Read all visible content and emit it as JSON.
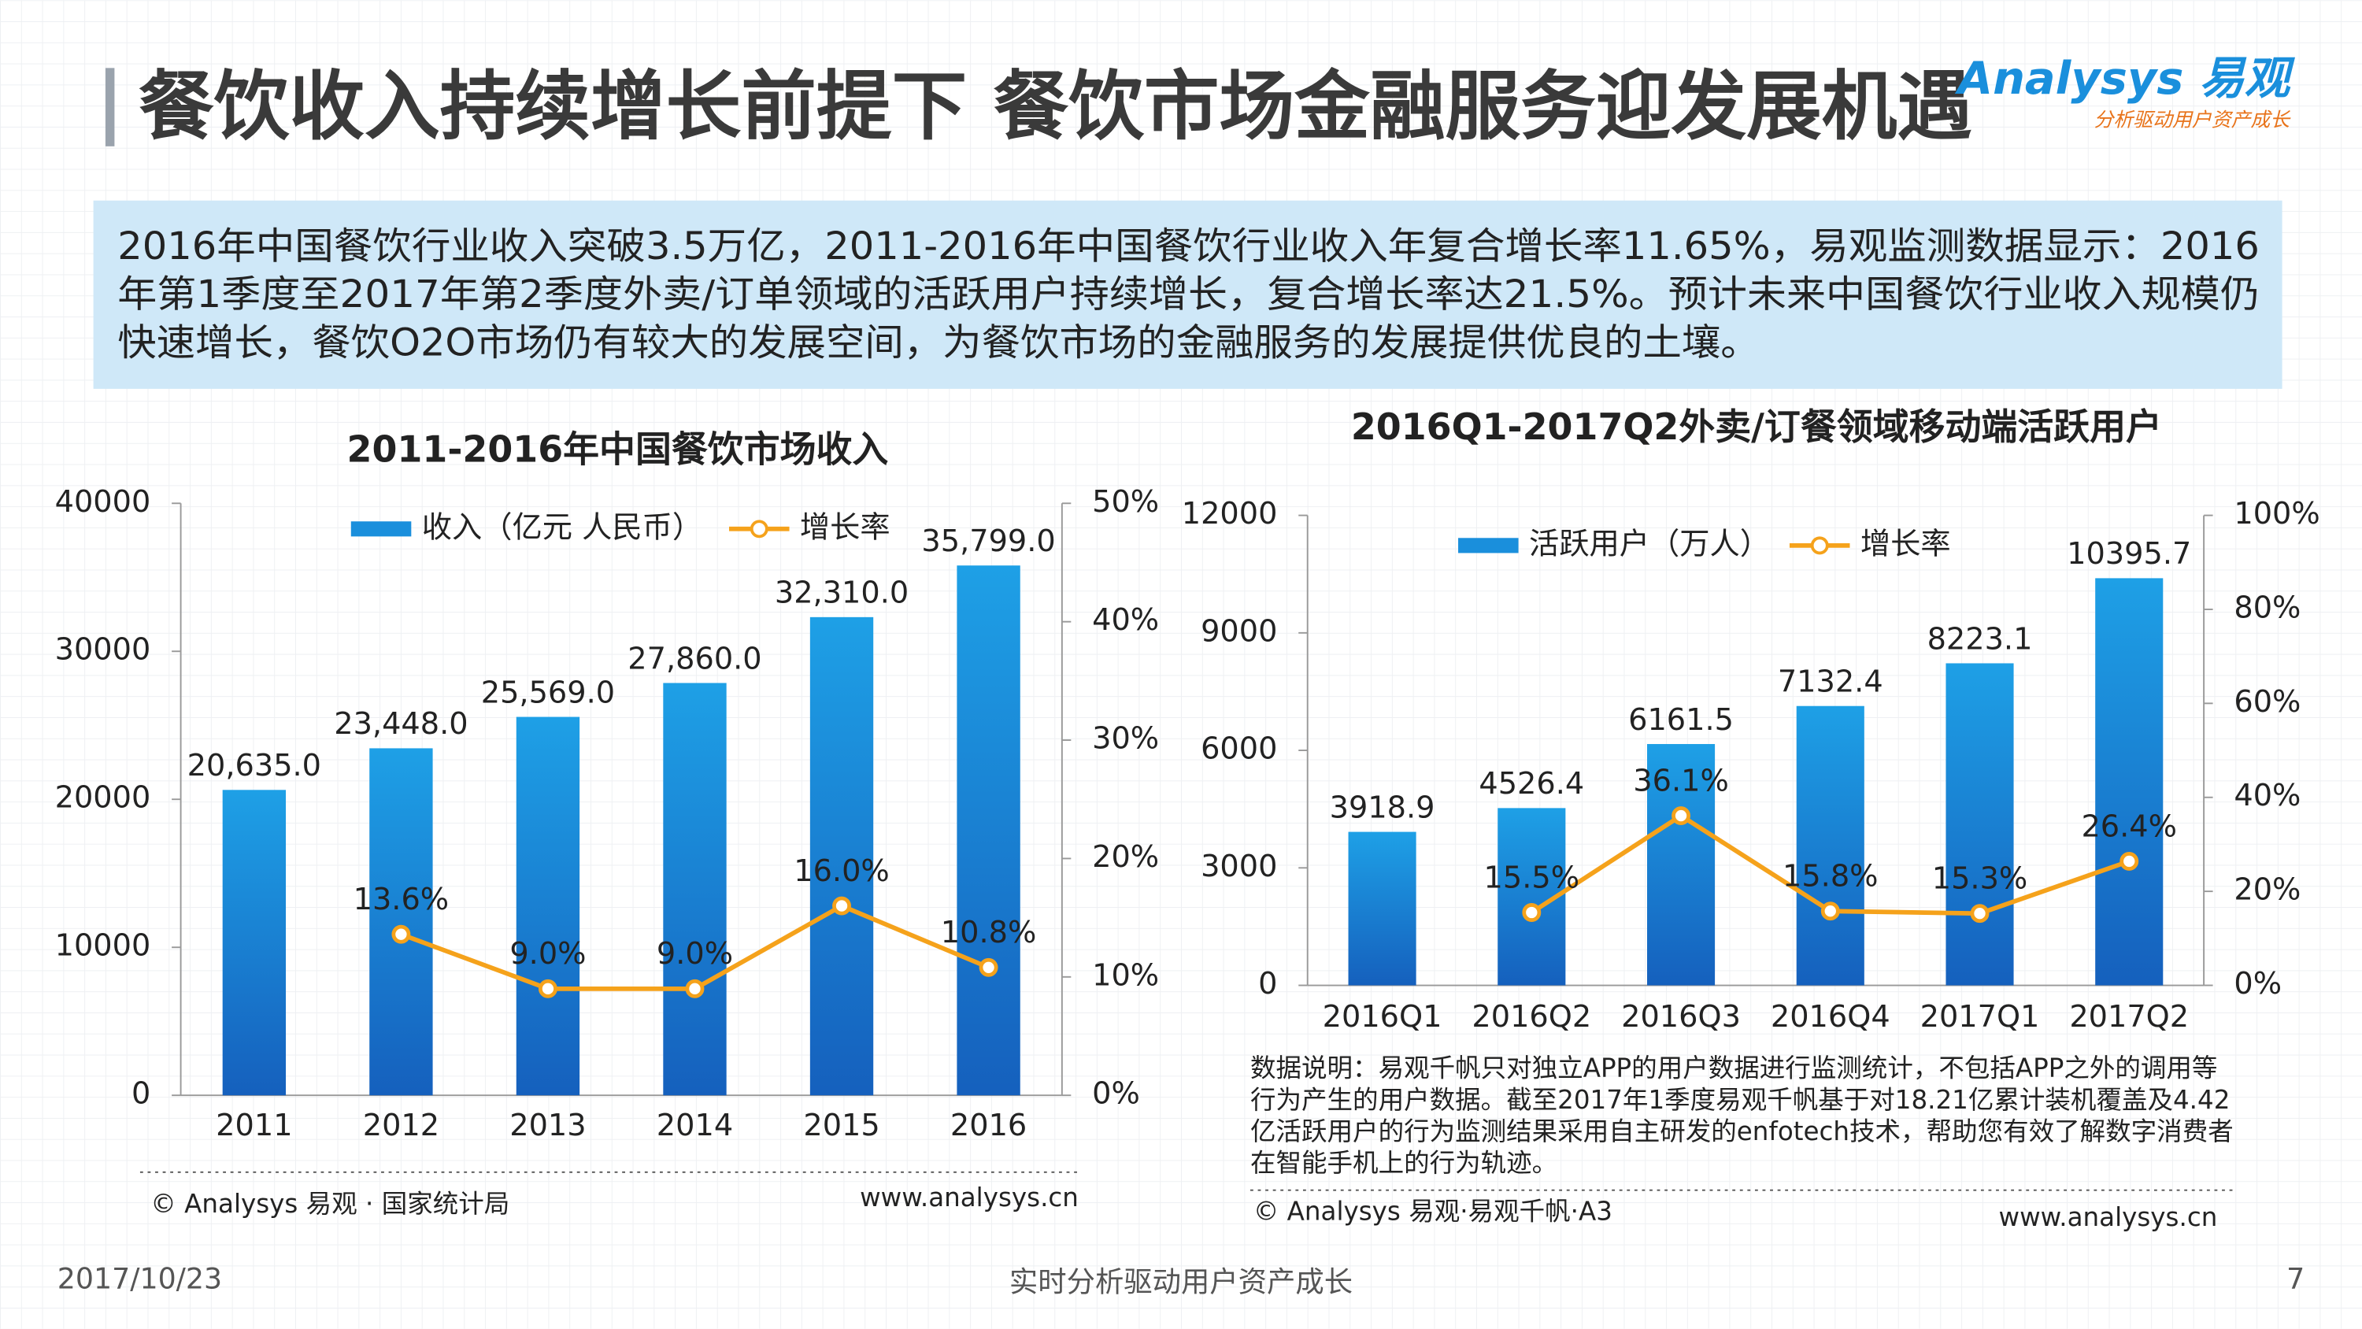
{
  "header": {
    "title": "餐饮收入持续增长前提下  餐饮市场金融服务迎发展机遇",
    "logo": "Analysys 易观",
    "logo_tagline": "分析驱动用户资产成长"
  },
  "summary": [
    "2016年中国餐饮行业收入突破3.5万亿，2011-2016年中国餐饮行业收入年复合增长率11.65%，易观监测数据显示：2016",
    "年第1季度至2017年第2季度外卖/订单领域的活跃用户持续增长，复合增长率达21.5%。预计未来中国餐饮行业收入规模仍",
    "快速增长，餐饮O2O市场仍有较大的发展空间，为餐饮市场的金融服务的发展提供优良的土壤。"
  ],
  "chart_data": [
    {
      "type": "bar",
      "title": "2011-2016年中国餐饮市场收入",
      "categories": [
        "2011",
        "2012",
        "2013",
        "2014",
        "2015",
        "2016"
      ],
      "series": [
        {
          "name": "收入（亿元 人民币）",
          "color": "#1a8fdc",
          "values": [
            20635,
            23448,
            25569,
            27860,
            32310,
            35799
          ],
          "value_labels": [
            "20,635.0",
            "23,448.0",
            "25,569.0",
            "27,860.0",
            "32,310.0",
            "35,799.0"
          ]
        },
        {
          "name": "增长率",
          "color": "#f5a21b",
          "type": "line",
          "axis": "y2",
          "values": [
            null,
            13.6,
            9.0,
            9.0,
            16.0,
            10.8
          ],
          "value_labels": [
            null,
            "13.6%",
            "9.0%",
            "9.0%",
            "16.0%",
            "10.8%"
          ]
        }
      ],
      "ylim": [
        0,
        40000
      ],
      "yticks": [
        0,
        10000,
        20000,
        30000,
        40000
      ],
      "y2lim": [
        0,
        50
      ],
      "y2ticks": [
        {
          "value": 0,
          "label": "0%"
        },
        {
          "value": 10,
          "label": "10%"
        },
        {
          "value": 20,
          "label": "20%"
        },
        {
          "value": 30,
          "label": "30%"
        },
        {
          "value": 40,
          "label": "40%"
        },
        {
          "value": 50,
          "label": "50%"
        }
      ],
      "legend": "top",
      "source": "© Analysys 易观 · 国家统计局",
      "website": "www.analysys.cn"
    },
    {
      "type": "bar",
      "title": "2016Q1-2017Q2外卖/订餐领域移动端活跃用户",
      "categories": [
        "2016Q1",
        "2016Q2",
        "2016Q3",
        "2016Q4",
        "2017Q1",
        "2017Q2"
      ],
      "series": [
        {
          "name": "活跃用户（万人）",
          "color": "#1a8fdc",
          "values": [
            3918.9,
            4526.4,
            6161.5,
            7132.4,
            8223.1,
            10395.7
          ]
        },
        {
          "name": "增长率",
          "color": "#f5a21b",
          "type": "line",
          "axis": "y2",
          "values": [
            null,
            15.5,
            36.1,
            15.8,
            15.3,
            26.4
          ],
          "value_labels": [
            null,
            "15.5%",
            "36.1%",
            "15.8%",
            "15.3%",
            "26.4%"
          ]
        }
      ],
      "ylim": [
        0,
        12000
      ],
      "yticks": [
        0,
        3000,
        6000,
        9000,
        12000
      ],
      "y2lim": [
        0,
        100
      ],
      "y2ticks": [
        {
          "value": 0,
          "label": "0%"
        },
        {
          "value": 20,
          "label": "20%"
        },
        {
          "value": 40,
          "label": "40%"
        },
        {
          "value": 60,
          "label": "60%"
        },
        {
          "value": 80,
          "label": "80%"
        },
        {
          "value": 100,
          "label": "100%"
        }
      ],
      "legend": "top",
      "note": [
        "数据说明：易观千帆只对独立APP的用户数据进行监测统计，不包括APP之外的调用等",
        "行为产生的用户数据。截至2017年1季度易观千帆基于对18.21亿累计装机覆盖及4.42",
        "亿活跃用户的行为监测结果采用自主研发的enfotech技术，帮助您有效了解数字消费者",
        "在智能手机上的行为轨迹。"
      ],
      "source": "© Analysys 易观·易观千帆·A3",
      "website": "www.analysys.cn"
    }
  ],
  "footer": {
    "date": "2017/10/23",
    "slogan": "实时分析驱动用户资产成长",
    "page": 7
  }
}
